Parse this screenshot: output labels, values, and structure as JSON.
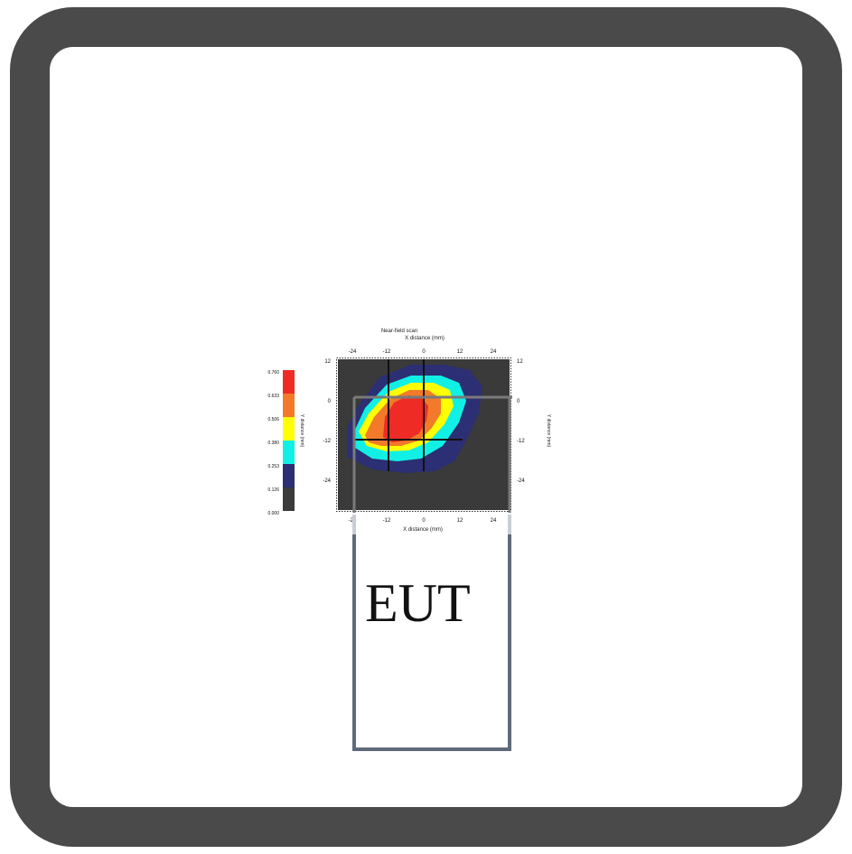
{
  "eut_label": "EUT",
  "chart_data": {
    "type": "heatmap",
    "title": "Near-field scan",
    "xlabel": "X distance (mm)",
    "ylabel": "Y distance (mm)",
    "xticks": [
      "-24",
      "-12",
      "0",
      "12",
      "24"
    ],
    "yticks": [
      "12",
      "0",
      "-12",
      "-24"
    ],
    "xlim": [
      -24,
      24
    ],
    "ylim": [
      -36,
      12
    ],
    "legend": {
      "placement": "left",
      "levels": [
        {
          "label": "0.760",
          "color": "#ef2b25"
        },
        {
          "label": "0.633",
          "color": "#f27a2a"
        },
        {
          "label": "0.506",
          "color": "#ffff00"
        },
        {
          "label": "0.380",
          "color": "#11f0e5"
        },
        {
          "label": "0.253",
          "color": "#2c2f73"
        },
        {
          "label": "0.126",
          "color": "#3b3b3b"
        },
        {
          "label": "0.000",
          "color": "#3b3b3b"
        }
      ]
    },
    "background_color": "#3a3a3a",
    "grid": true
  }
}
